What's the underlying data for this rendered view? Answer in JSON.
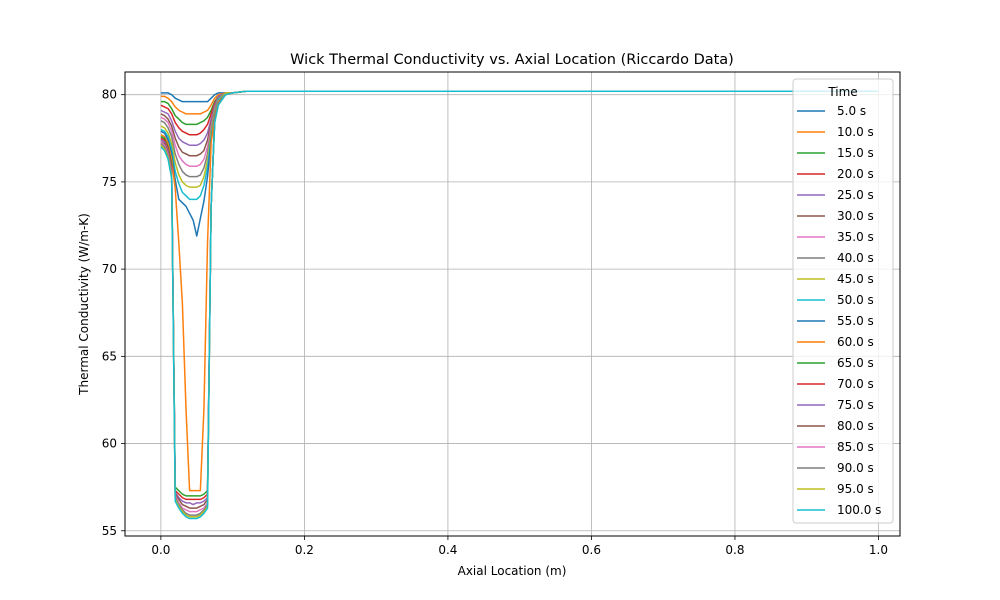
{
  "chart_data": {
    "type": "line",
    "title": "Wick Thermal Conductivity vs. Axial Location (Riccardo Data)",
    "xlabel": "Axial Location (m)",
    "ylabel": "Thermal Conductivity (W/m-K)",
    "xlim": [
      -0.05,
      1.03
    ],
    "ylim": [
      54.7,
      81.3
    ],
    "x_ticks": [
      0.0,
      0.2,
      0.4,
      0.6,
      0.8,
      1.0
    ],
    "x_tick_labels": [
      "0.0",
      "0.2",
      "0.4",
      "0.6",
      "0.8",
      "1.0"
    ],
    "y_ticks": [
      55,
      60,
      65,
      70,
      75,
      80
    ],
    "y_tick_labels": [
      "55",
      "60",
      "65",
      "70",
      "75",
      "80"
    ],
    "grid": true,
    "legend": {
      "title": "Time",
      "placement": "top-right"
    },
    "x_profile": [
      0.0,
      0.005,
      0.01,
      0.015,
      0.02,
      0.025,
      0.03,
      0.035,
      0.04,
      0.045,
      0.05,
      0.055,
      0.06,
      0.065,
      0.07,
      0.075,
      0.08,
      0.09,
      0.1,
      0.12,
      0.15,
      0.2,
      0.4,
      0.6,
      0.8,
      1.0
    ],
    "series": [
      {
        "name": "5.0 s",
        "color": "#1f77b4",
        "values": [
          80.1,
          80.1,
          80.1,
          80.0,
          79.8,
          79.7,
          79.6,
          79.6,
          79.6,
          79.6,
          79.6,
          79.6,
          79.6,
          79.6,
          79.8,
          80.0,
          80.1,
          80.1,
          80.1,
          80.2,
          80.2,
          80.2,
          80.2,
          80.2,
          80.2,
          80.2
        ]
      },
      {
        "name": "10.0 s",
        "color": "#ff7f0e",
        "values": [
          79.9,
          79.9,
          79.8,
          79.6,
          79.3,
          79.1,
          79.0,
          78.9,
          78.9,
          78.9,
          78.9,
          78.9,
          79.0,
          79.1,
          79.4,
          79.8,
          80.0,
          80.1,
          80.1,
          80.2,
          80.2,
          80.2,
          80.2,
          80.2,
          80.2,
          80.2
        ]
      },
      {
        "name": "15.0 s",
        "color": "#2ca02c",
        "values": [
          79.6,
          79.6,
          79.5,
          79.2,
          78.8,
          78.6,
          78.4,
          78.3,
          78.3,
          78.3,
          78.3,
          78.4,
          78.5,
          78.7,
          79.1,
          79.6,
          79.9,
          80.1,
          80.1,
          80.2,
          80.2,
          80.2,
          80.2,
          80.2,
          80.2,
          80.2
        ]
      },
      {
        "name": "20.0 s",
        "color": "#d62728",
        "values": [
          79.4,
          79.3,
          79.2,
          78.9,
          78.4,
          78.1,
          77.9,
          77.8,
          77.7,
          77.7,
          77.7,
          77.8,
          78.0,
          78.3,
          78.9,
          79.5,
          79.9,
          80.1,
          80.1,
          80.2,
          80.2,
          80.2,
          80.2,
          80.2,
          80.2,
          80.2
        ]
      },
      {
        "name": "25.0 s",
        "color": "#9467bd",
        "values": [
          79.1,
          79.0,
          78.9,
          78.5,
          77.9,
          77.5,
          77.3,
          77.2,
          77.1,
          77.1,
          77.1,
          77.2,
          77.4,
          77.8,
          78.6,
          79.4,
          79.9,
          80.1,
          80.1,
          80.2,
          80.2,
          80.2,
          80.2,
          80.2,
          80.2,
          80.2
        ]
      },
      {
        "name": "30.0 s",
        "color": "#8c564b",
        "values": [
          78.9,
          78.8,
          78.6,
          78.2,
          77.5,
          77.0,
          76.7,
          76.6,
          76.5,
          76.5,
          76.5,
          76.6,
          76.8,
          77.4,
          78.4,
          79.3,
          79.8,
          80.1,
          80.1,
          80.2,
          80.2,
          80.2,
          80.2,
          80.2,
          80.2,
          80.2
        ]
      },
      {
        "name": "35.0 s",
        "color": "#e377c2",
        "values": [
          78.7,
          78.6,
          78.4,
          77.9,
          77.1,
          76.5,
          76.2,
          76.0,
          75.9,
          75.9,
          75.9,
          76.0,
          76.3,
          77.0,
          78.2,
          79.2,
          79.8,
          80.1,
          80.1,
          80.2,
          80.2,
          80.2,
          80.2,
          80.2,
          80.2,
          80.2
        ]
      },
      {
        "name": "40.0 s",
        "color": "#7f7f7f",
        "values": [
          78.5,
          78.4,
          78.1,
          77.6,
          76.6,
          76.0,
          75.6,
          75.4,
          75.3,
          75.3,
          75.3,
          75.4,
          75.8,
          76.6,
          78.0,
          79.1,
          79.8,
          80.1,
          80.1,
          80.2,
          80.2,
          80.2,
          80.2,
          80.2,
          80.2,
          80.2
        ]
      },
      {
        "name": "45.0 s",
        "color": "#bcbd22",
        "values": [
          78.2,
          78.1,
          77.8,
          77.2,
          76.1,
          75.4,
          75.0,
          74.8,
          74.7,
          74.7,
          74.7,
          74.8,
          75.3,
          76.2,
          77.8,
          79.0,
          79.7,
          80.1,
          80.1,
          80.2,
          80.2,
          80.2,
          80.2,
          80.2,
          80.2,
          80.2
        ]
      },
      {
        "name": "50.0 s",
        "color": "#17becf",
        "values": [
          78.0,
          77.9,
          77.6,
          76.9,
          75.6,
          74.9,
          74.4,
          74.2,
          74.0,
          74.0,
          74.0,
          74.2,
          74.8,
          75.8,
          77.6,
          78.9,
          79.7,
          80.0,
          80.1,
          80.2,
          80.2,
          80.2,
          80.2,
          80.2,
          80.2,
          80.2
        ]
      },
      {
        "name": "55.0 s",
        "color": "#1f77b4",
        "values": [
          77.9,
          77.8,
          77.4,
          76.6,
          75.1,
          74.0,
          73.8,
          73.6,
          73.2,
          72.8,
          71.9,
          72.9,
          73.9,
          75.3,
          77.4,
          78.8,
          79.6,
          80.0,
          80.1,
          80.2,
          80.2,
          80.2,
          80.2,
          80.2,
          80.2,
          80.2
        ]
      },
      {
        "name": "60.0 s",
        "color": "#ff7f0e",
        "values": [
          77.7,
          77.6,
          77.2,
          76.3,
          74.6,
          71.5,
          68.0,
          62.0,
          57.3,
          57.3,
          57.3,
          57.3,
          62.0,
          71.5,
          77.2,
          78.8,
          79.6,
          80.0,
          80.1,
          80.2,
          80.2,
          80.2,
          80.2,
          80.2,
          80.2,
          80.2
        ]
      },
      {
        "name": "65.0 s",
        "color": "#2ca02c",
        "values": [
          77.6,
          77.5,
          77.0,
          76.0,
          57.5,
          57.3,
          57.1,
          57.0,
          57.0,
          57.0,
          57.0,
          57.0,
          57.1,
          57.3,
          73.6,
          78.7,
          79.5,
          80.0,
          80.1,
          80.2,
          80.2,
          80.2,
          80.2,
          80.2,
          80.2,
          80.2
        ]
      },
      {
        "name": "70.0 s",
        "color": "#d62728",
        "values": [
          77.5,
          77.4,
          76.9,
          75.8,
          57.3,
          57.1,
          56.9,
          56.8,
          56.8,
          56.8,
          56.8,
          56.8,
          56.9,
          57.1,
          73.6,
          78.6,
          79.5,
          80.0,
          80.1,
          80.2,
          80.2,
          80.2,
          80.2,
          80.2,
          80.2,
          80.2
        ]
      },
      {
        "name": "75.0 s",
        "color": "#9467bd",
        "values": [
          77.4,
          77.3,
          76.8,
          75.7,
          57.2,
          56.9,
          56.7,
          56.6,
          56.6,
          56.5,
          56.6,
          56.6,
          56.7,
          56.9,
          73.6,
          78.6,
          79.5,
          80.0,
          80.1,
          80.2,
          80.2,
          80.2,
          80.2,
          80.2,
          80.2,
          80.2
        ]
      },
      {
        "name": "80.0 s",
        "color": "#8c564b",
        "values": [
          77.3,
          77.2,
          76.7,
          75.6,
          57.1,
          56.8,
          56.5,
          56.4,
          56.3,
          56.3,
          56.3,
          56.4,
          56.5,
          56.8,
          73.6,
          78.5,
          79.5,
          80.0,
          80.1,
          80.2,
          80.2,
          80.2,
          80.2,
          80.2,
          80.2,
          80.2
        ]
      },
      {
        "name": "85.0 s",
        "color": "#e377c2",
        "values": [
          77.3,
          77.1,
          76.6,
          75.5,
          57.0,
          56.6,
          56.3,
          56.2,
          56.1,
          56.1,
          56.1,
          56.2,
          56.3,
          56.6,
          73.6,
          78.5,
          79.5,
          80.0,
          80.1,
          80.2,
          80.2,
          80.2,
          80.2,
          80.2,
          80.2,
          80.2
        ]
      },
      {
        "name": "90.0 s",
        "color": "#7f7f7f",
        "values": [
          77.2,
          77.0,
          76.5,
          75.4,
          56.9,
          56.5,
          56.2,
          56.0,
          55.9,
          55.9,
          55.9,
          56.0,
          56.2,
          56.5,
          73.6,
          78.5,
          79.5,
          80.0,
          80.1,
          80.2,
          80.2,
          80.2,
          80.2,
          80.2,
          80.2,
          80.2
        ]
      },
      {
        "name": "95.0 s",
        "color": "#bcbd22",
        "values": [
          77.1,
          76.9,
          76.4,
          75.3,
          56.8,
          56.4,
          56.1,
          55.9,
          55.8,
          55.8,
          55.8,
          55.9,
          56.1,
          56.4,
          73.6,
          78.4,
          79.4,
          80.0,
          80.1,
          80.2,
          80.2,
          80.2,
          80.2,
          80.2,
          80.2,
          80.2
        ]
      },
      {
        "name": "100.0 s",
        "color": "#17becf",
        "values": [
          77.0,
          76.8,
          76.3,
          75.2,
          56.7,
          56.3,
          56.0,
          55.8,
          55.7,
          55.7,
          55.7,
          55.8,
          56.0,
          56.3,
          73.6,
          78.4,
          79.4,
          80.0,
          80.1,
          80.2,
          80.2,
          80.2,
          80.2,
          80.2,
          80.2,
          80.2
        ]
      }
    ]
  }
}
